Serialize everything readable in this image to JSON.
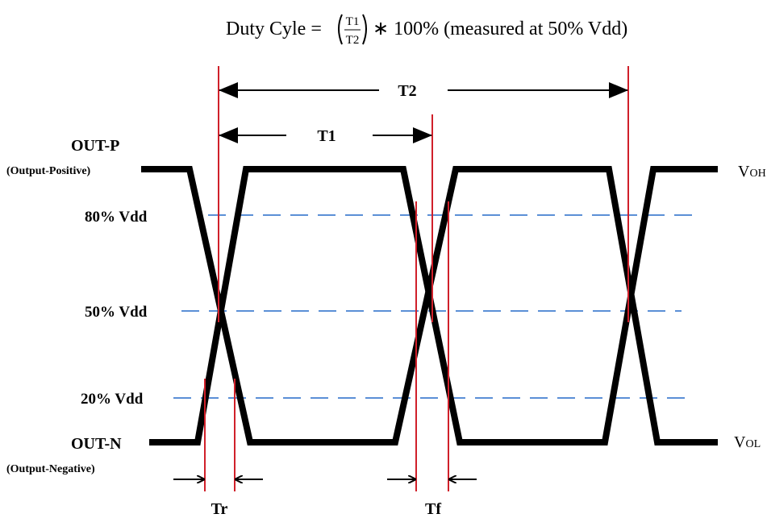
{
  "formula": {
    "prefix": "Duty Cyle =",
    "numerator": "T1",
    "denominator": "T2",
    "suffix": "∗ 100% (measured at 50% Vdd)"
  },
  "periods": {
    "t2": "T2",
    "t1": "T1"
  },
  "signals": {
    "out_p": "OUT-P",
    "out_p_note": "(Output-Positive)",
    "out_n": "OUT-N",
    "out_n_note": "(Output-Negative)"
  },
  "levels": {
    "high": "80% Vdd",
    "mid": "50% Vdd",
    "low": "20% Vdd"
  },
  "outputs": {
    "voh": {
      "main": "V",
      "sub": "OH"
    },
    "vol": {
      "main": "V",
      "sub": "OL"
    }
  },
  "edges": {
    "rise": "Tr",
    "fall": "Tf"
  }
}
